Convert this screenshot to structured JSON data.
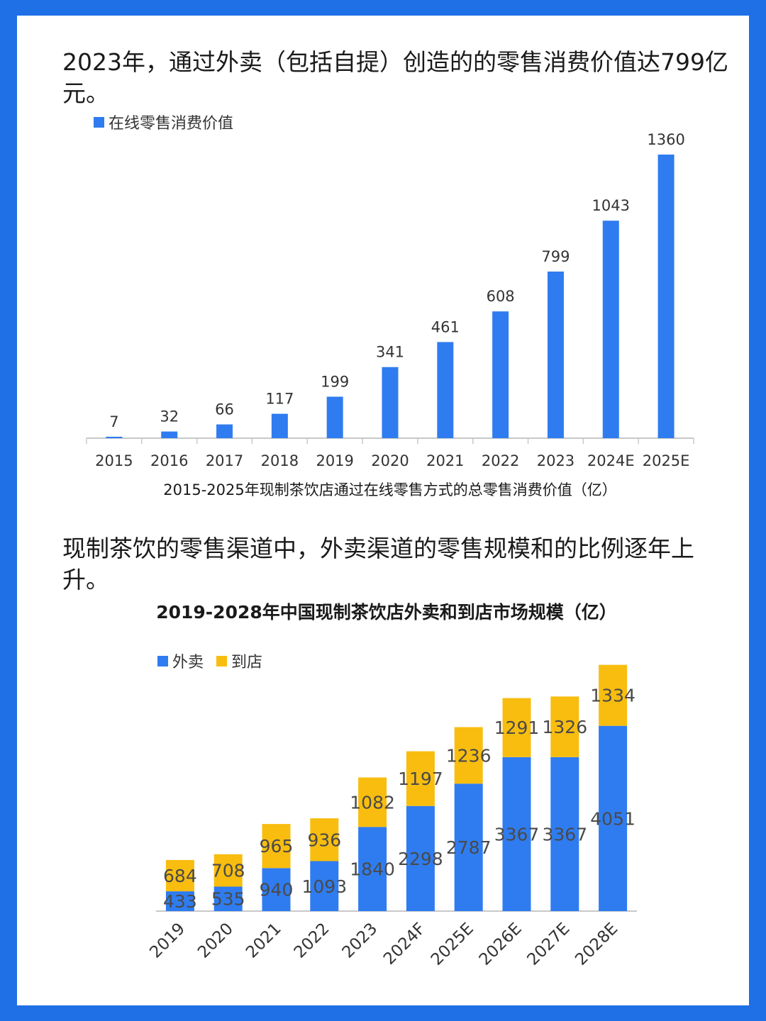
{
  "colors": {
    "frame": "#1f6fe6",
    "online": "#2f7cf0",
    "delivery": "#2f7cf0",
    "instore": "#f8bd0f",
    "axis": "#c8c8c8"
  },
  "section1": {
    "heading": "2023年，通过外卖（包括自提）创造的的零售消费价值达799亿元。"
  },
  "section2": {
    "heading": "现制茶饮的零售渠道中，外卖渠道的零售规模和的比例逐年上升。"
  },
  "chart_data": [
    {
      "type": "bar",
      "title": "",
      "caption": "2015-2025年现制茶饮店通过在线零售方式的总零售消费价值（亿）",
      "legend": [
        "在线零售消费价值"
      ],
      "categories": [
        "2015",
        "2016",
        "2017",
        "2018",
        "2019",
        "2020",
        "2021",
        "2022",
        "2023",
        "2024E",
        "2025E"
      ],
      "series": [
        {
          "name": "在线零售消费价值",
          "values": [
            7,
            32,
            66,
            117,
            199,
            341,
            461,
            608,
            799,
            1043,
            1360
          ]
        }
      ],
      "ylim": [
        0,
        1400
      ],
      "xlabel": "",
      "ylabel": "",
      "grid": false,
      "legend_position": "top-left"
    },
    {
      "type": "bar",
      "stacked": true,
      "title": "2019-2028年中国现制茶饮店外卖和到店市场规模（亿）",
      "legend": [
        "外卖",
        "到店"
      ],
      "categories": [
        "2019",
        "2020",
        "2021",
        "2022",
        "2023",
        "2024F",
        "2025E",
        "2026E",
        "2027E",
        "2028E"
      ],
      "series": [
        {
          "name": "外卖",
          "values": [
            433,
            535,
            940,
            1093,
            1840,
            2298,
            2787,
            3367,
            3367,
            4051
          ]
        },
        {
          "name": "到店",
          "values": [
            684,
            708,
            965,
            936,
            1082,
            1197,
            1236,
            1291,
            1326,
            1334
          ]
        }
      ],
      "ylim": [
        0,
        5500
      ],
      "xlabel": "",
      "ylabel": "",
      "grid": false,
      "legend_position": "top-left"
    }
  ]
}
